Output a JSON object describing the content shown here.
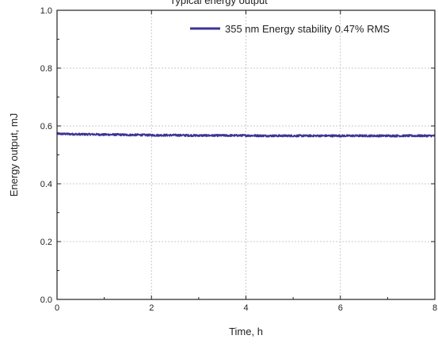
{
  "chart_data": {
    "type": "line",
    "title": "Typical energy output",
    "xlabel": "Time, h",
    "ylabel": "Energy output, mJ",
    "xlim": [
      0,
      8
    ],
    "ylim": [
      0,
      1.0
    ],
    "xticks": [
      "0",
      "2",
      "4",
      "6",
      "8"
    ],
    "yticks": [
      "0.0",
      "0.2",
      "0.4",
      "0.6",
      "0.8",
      "1.0"
    ],
    "xtick_values": [
      0,
      2,
      4,
      6,
      8
    ],
    "ytick_values": [
      0,
      0.2,
      0.4,
      0.6,
      0.8,
      1.0
    ],
    "grid": true,
    "legend_position": "top-right",
    "series": [
      {
        "name": "355 nm Energy stability 0.47% RMS",
        "color": "#3b3494",
        "x": [
          0,
          0.25,
          0.5,
          0.75,
          1.0,
          1.25,
          1.5,
          1.75,
          2.0,
          2.5,
          3.0,
          3.5,
          4.0,
          4.5,
          5.0,
          5.5,
          6.0,
          6.5,
          7.0,
          7.5,
          8.0
        ],
        "y": [
          0.573,
          0.572,
          0.571,
          0.571,
          0.57,
          0.57,
          0.569,
          0.569,
          0.568,
          0.568,
          0.567,
          0.567,
          0.567,
          0.566,
          0.566,
          0.566,
          0.566,
          0.566,
          0.566,
          0.566,
          0.566
        ],
        "rms_percent": 0.47
      }
    ]
  }
}
